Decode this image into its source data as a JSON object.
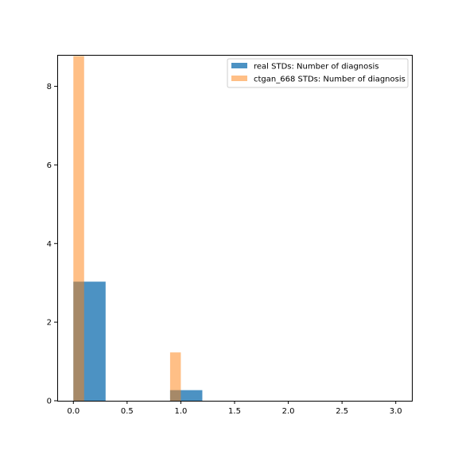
{
  "chart_data": {
    "type": "bar",
    "title": "",
    "xlabel": "",
    "ylabel": "",
    "xlim": [
      -0.15,
      3.15
    ],
    "ylim": [
      0,
      8.8
    ],
    "grid": false,
    "legend_position": "top-right",
    "x_ticks": [
      {
        "value": 0.0,
        "label": "0.0"
      },
      {
        "value": 0.5,
        "label": "0.5"
      },
      {
        "value": 1.0,
        "label": "1.0"
      },
      {
        "value": 1.5,
        "label": "1.5"
      },
      {
        "value": 2.0,
        "label": "2.0"
      },
      {
        "value": 2.5,
        "label": "2.5"
      },
      {
        "value": 3.0,
        "label": "3.0"
      }
    ],
    "y_ticks": [
      {
        "value": 0,
        "label": "0"
      },
      {
        "value": 2,
        "label": "2"
      },
      {
        "value": 4,
        "label": "4"
      },
      {
        "value": 6,
        "label": "6"
      },
      {
        "value": 8,
        "label": "8"
      }
    ],
    "series": [
      {
        "name": "real STDs: Number of diagnosis",
        "color": "#1f77b4",
        "opacity": 0.8,
        "bins": [
          {
            "start": 0.0,
            "end": 0.3,
            "value": 3.03
          },
          {
            "start": 0.9,
            "end": 1.2,
            "value": 0.27
          }
        ]
      },
      {
        "name": "ctgan_668 STDs: Number of diagnosis",
        "color": "#ff7f0e",
        "opacity": 0.5,
        "bins": [
          {
            "start": 0.0,
            "end": 0.1,
            "value": 8.77
          },
          {
            "start": 0.9,
            "end": 1.0,
            "value": 1.23
          }
        ]
      }
    ]
  }
}
